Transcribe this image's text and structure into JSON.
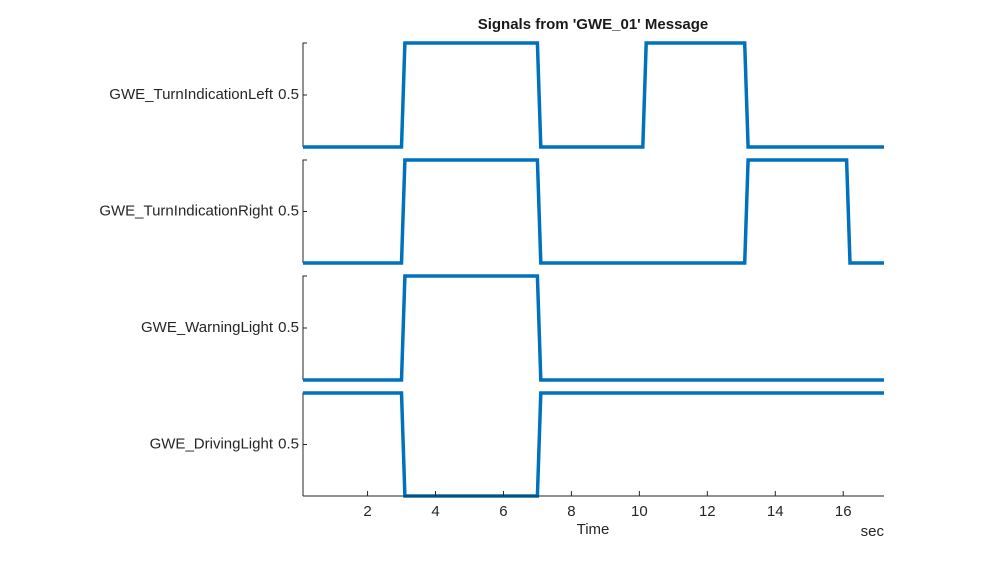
{
  "chart_data": {
    "type": "line",
    "title": "Signals from 'GWE_01' Message",
    "xlabel": "Time",
    "xunit": "sec",
    "xlim": [
      0.1,
      17.2
    ],
    "xticks": [
      2,
      4,
      6,
      8,
      10,
      12,
      14,
      16
    ],
    "ylim": [
      0,
      1
    ],
    "yticks": [
      0.5
    ],
    "color": "#0072bd",
    "series": [
      {
        "name": "GWE_TurnIndicationLeft",
        "x": [
          0.1,
          3.0,
          3.1,
          7.0,
          7.1,
          10.1,
          10.2,
          13.1,
          13.2,
          17.2
        ],
        "values": [
          0,
          0,
          1,
          1,
          0,
          0,
          1,
          1,
          0,
          0
        ]
      },
      {
        "name": "GWE_TurnIndicationRight",
        "x": [
          0.1,
          3.0,
          3.1,
          7.0,
          7.1,
          13.1,
          13.2,
          16.1,
          16.2,
          17.2
        ],
        "values": [
          0,
          0,
          1,
          1,
          0,
          0,
          1,
          1,
          0,
          0
        ]
      },
      {
        "name": "GWE_WarningLight",
        "x": [
          0.1,
          3.0,
          3.1,
          7.0,
          7.1,
          17.2
        ],
        "values": [
          0,
          0,
          1,
          1,
          0,
          0
        ]
      },
      {
        "name": "GWE_DrivingLight",
        "x": [
          0.1,
          3.0,
          3.1,
          7.0,
          7.1,
          17.2
        ],
        "values": [
          1,
          1,
          0,
          0,
          1,
          1
        ]
      }
    ]
  }
}
